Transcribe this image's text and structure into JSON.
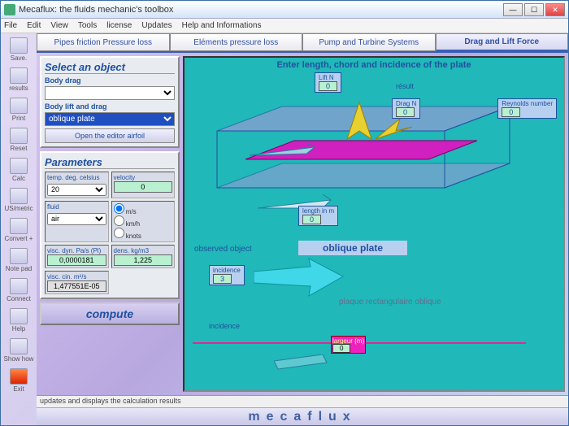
{
  "window": {
    "title": "Mecaflux: the fluids mechanic's toolbox"
  },
  "menu": [
    "File",
    "Edit",
    "View",
    "Tools",
    "license",
    "Updates",
    "Help and Informations"
  ],
  "toolbar_items": [
    {
      "label": "Save.",
      "name": "save"
    },
    {
      "label": "results",
      "name": "results"
    },
    {
      "label": "Print",
      "name": "print"
    },
    {
      "label": "Reset",
      "name": "reset"
    },
    {
      "label": "Calc",
      "name": "calc"
    },
    {
      "label": "US/metric",
      "name": "units"
    },
    {
      "label": "Convert +",
      "name": "convert"
    },
    {
      "label": "Note pad",
      "name": "notepad"
    },
    {
      "label": "Connect",
      "name": "connect"
    },
    {
      "label": "Help",
      "name": "help"
    },
    {
      "label": "Show how",
      "name": "showhow"
    },
    {
      "label": "Exit",
      "name": "exit"
    }
  ],
  "tabs": [
    {
      "label": "Pipes friction Pressure loss",
      "active": false
    },
    {
      "label": "Eléments pressure loss",
      "active": false
    },
    {
      "label": "Pump and Turbine Systems",
      "active": false
    },
    {
      "label": "Drag and Lift Force",
      "active": true
    }
  ],
  "select_panel": {
    "title": "Select an object",
    "body_drag_label": "Body drag",
    "body_drag_value": "",
    "body_lift_label": "Body lift and drag",
    "body_lift_value": "oblique plate",
    "editor_btn": "Open the editor airfoil"
  },
  "params": {
    "title": "Parameters",
    "temp_label": "temp. deg. celsius",
    "temp_value": "20",
    "velocity_label": "velocity",
    "velocity_value": "0",
    "fluid_label": "fluid",
    "fluid_value": "air",
    "units": [
      "m/s",
      "km/h",
      "knots"
    ],
    "visc_dyn_label": "visc. dyn. Pa/s (Pl)",
    "visc_dyn_value": "0,0000181",
    "dens_label": "dens. kg/m3",
    "dens_value": "1,225",
    "visc_cin_label": "visc. cin. m²/s",
    "visc_cin_value": "1,477551E-05"
  },
  "compute_label": "compute",
  "canvas": {
    "title": "Enter length, chord and incidence of the plate",
    "lift_label": "Lift N",
    "lift_value": "0",
    "result_label": "résult",
    "drag_label": "Drag N",
    "drag_value": "0",
    "reynolds_label": "Reynolds number",
    "reynolds_value": "0",
    "length_label": "length in m",
    "length_value": "0",
    "observed_label": "observed object",
    "object_name": "oblique plate",
    "incidence_label": "incidence",
    "incidence_value": "3",
    "subtitle": "plaque rectangulaire oblique",
    "incidence2": "incidence",
    "largeur_label": "largeur (m)",
    "largeur_value": "0",
    "colors": {
      "bg": "#20b8b8",
      "plate": "#d020c0",
      "box": "#a898d8",
      "arrow_gold": "#e8d030",
      "arrow_cyan": "#40d8e8"
    }
  },
  "status": "updates and displays the calculation results",
  "footer": "mecaflux"
}
